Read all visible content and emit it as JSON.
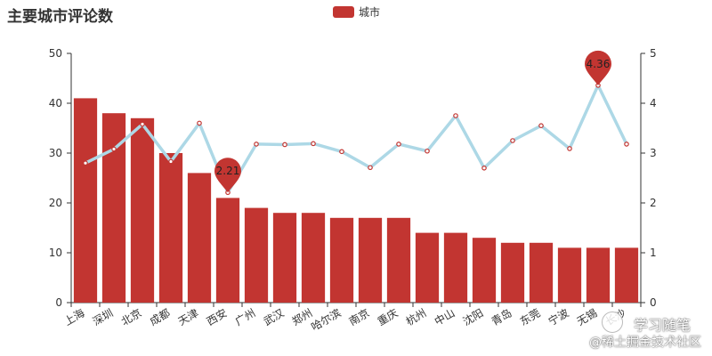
{
  "chart_data": {
    "type": "bar",
    "title": "主要城市评论数",
    "legend": {
      "position": "top-center",
      "entries": [
        "城市"
      ]
    },
    "categories": [
      "上海",
      "深圳",
      "北京",
      "成都",
      "天津",
      "西安",
      "广州",
      "武汉",
      "郑州",
      "哈尔滨",
      "南京",
      "重庆",
      "杭州",
      "中山",
      "沈阳",
      "青岛",
      "东莞",
      "宁波",
      "无锡",
      "长沙"
    ],
    "series": [
      {
        "name": "城市",
        "type": "bar",
        "axis": "left",
        "color": "#c23531",
        "values": [
          41,
          38,
          37,
          30,
          26,
          21,
          19,
          18,
          18,
          17,
          17,
          17,
          14,
          14,
          13,
          12,
          12,
          11,
          11,
          11
        ]
      },
      {
        "type": "line",
        "axis": "right",
        "color": "#add8e6",
        "values": [
          2.8,
          3.08,
          3.58,
          2.83,
          3.6,
          2.21,
          3.18,
          3.17,
          3.19,
          3.03,
          2.71,
          3.18,
          3.04,
          3.75,
          2.7,
          3.25,
          3.55,
          3.09,
          4.36,
          3.18
        ]
      }
    ],
    "markpoints": [
      {
        "category": "西安",
        "value": 2.21,
        "label": "2.21"
      },
      {
        "category": "无锡",
        "value": 4.36,
        "label": "4.36"
      }
    ],
    "y_left": {
      "min": 0,
      "max": 50,
      "ticks": [
        0,
        10,
        20,
        30,
        40,
        50
      ]
    },
    "y_right": {
      "min": 0,
      "max": 5,
      "ticks": [
        0,
        1,
        2,
        3,
        4,
        5
      ]
    },
    "grid": false
  },
  "watermark": {
    "line1": "学习随笔",
    "line2": "@稀土掘金技术社区"
  }
}
